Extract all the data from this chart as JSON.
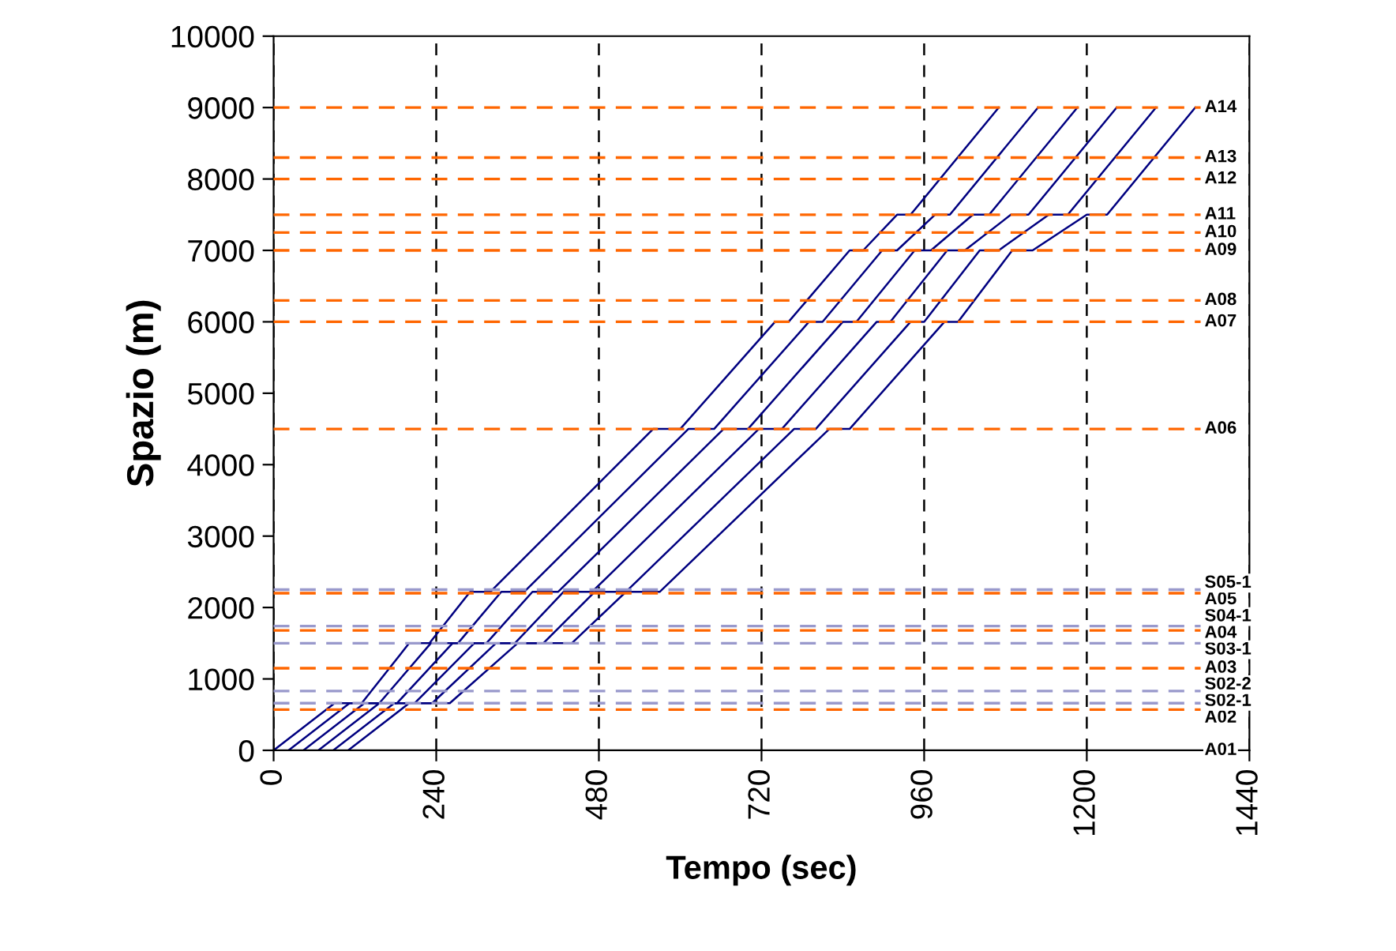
{
  "chart_data": {
    "type": "line",
    "xlabel": "Tempo (sec)",
    "ylabel": "Spazio (m)",
    "xlim": [
      0,
      1440
    ],
    "xticks": [
      0,
      240,
      480,
      720,
      960,
      1200,
      1440
    ],
    "ylim": [
      0,
      10000
    ],
    "yticks": [
      0,
      1000,
      2000,
      3000,
      4000,
      5000,
      6000,
      7000,
      8000,
      9000,
      10000
    ],
    "grid": "x",
    "line_style": "solid",
    "series": [
      {
        "color": "#000080",
        "x": [
          0,
          90,
          130,
          200,
          230,
          290,
          320,
          560,
          600,
          740,
          760,
          850,
          870,
          920,
          940,
          1070
        ],
        "values": [
          0,
          660,
          660,
          1500,
          1500,
          2220,
          2220,
          4500,
          4500,
          6000,
          6000,
          7000,
          7000,
          7500,
          7500,
          9000
        ]
      },
      {
        "color": "#000080",
        "x": [
          22,
          112,
          156,
          232,
          272,
          336,
          370,
          612,
          650,
          790,
          810,
          898,
          920,
          976,
          998,
          1128
        ],
        "values": [
          0,
          660,
          660,
          1500,
          1500,
          2220,
          2220,
          4500,
          4500,
          6000,
          6000,
          7000,
          7000,
          7500,
          7500,
          9000
        ]
      },
      {
        "color": "#000080",
        "x": [
          44,
          134,
          182,
          264,
          314,
          382,
          420,
          664,
          700,
          840,
          860,
          946,
          970,
          1032,
          1056,
          1186
        ],
        "values": [
          0,
          660,
          660,
          1500,
          1500,
          2220,
          2220,
          4500,
          4500,
          6000,
          6000,
          7000,
          7000,
          7500,
          7500,
          9000
        ]
      },
      {
        "color": "#000080",
        "x": [
          66,
          156,
          208,
          296,
          356,
          428,
          470,
          716,
          750,
          890,
          910,
          994,
          1020,
          1088,
          1114,
          1244
        ],
        "values": [
          0,
          660,
          660,
          1500,
          1500,
          2220,
          2220,
          4500,
          4500,
          6000,
          6000,
          7000,
          7000,
          7500,
          7500,
          9000
        ]
      },
      {
        "color": "#000080",
        "x": [
          88,
          178,
          234,
          328,
          398,
          474,
          520,
          768,
          800,
          940,
          960,
          1042,
          1070,
          1144,
          1172,
          1302
        ],
        "values": [
          0,
          660,
          660,
          1500,
          1500,
          2220,
          2220,
          4500,
          4500,
          6000,
          6000,
          7000,
          7000,
          7500,
          7500,
          9000
        ]
      },
      {
        "color": "#000080",
        "x": [
          110,
          200,
          260,
          360,
          440,
          520,
          570,
          820,
          850,
          990,
          1010,
          1090,
          1120,
          1200,
          1230,
          1360
        ],
        "values": [
          0,
          660,
          660,
          1500,
          1500,
          2220,
          2220,
          4500,
          4500,
          6000,
          6000,
          7000,
          7000,
          7500,
          7500,
          9000
        ]
      }
    ],
    "annotations": [
      {
        "text": "A01",
        "y": 0
      }
    ],
    "ref_lines": [
      {
        "axis": "y",
        "value": 570,
        "label": "A02",
        "color": "#ff6600",
        "line_style": "dashed"
      },
      {
        "axis": "y",
        "value": 660,
        "label": "S02-1",
        "color": "#9999cc",
        "line_style": "dashed"
      },
      {
        "axis": "y",
        "value": 830,
        "label": "S02-2",
        "color": "#9999cc",
        "line_style": "dashed"
      },
      {
        "axis": "y",
        "value": 1150,
        "label": "A03",
        "color": "#ff6600",
        "line_style": "dashed"
      },
      {
        "axis": "y",
        "value": 1500,
        "label": "S03-1",
        "color": "#9999cc",
        "line_style": "dashed"
      },
      {
        "axis": "y",
        "value": 1680,
        "label": "A04",
        "color": "#ff6600",
        "line_style": "dashed"
      },
      {
        "axis": "y",
        "value": 1740,
        "label": "S04-1",
        "color": "#9999cc",
        "line_style": "dashed"
      },
      {
        "axis": "y",
        "value": 2200,
        "label": "A05",
        "color": "#ff6600",
        "line_style": "dashed"
      },
      {
        "axis": "y",
        "value": 2250,
        "label": "S05-1",
        "color": "#9999cc",
        "line_style": "dashed"
      },
      {
        "axis": "y",
        "value": 4500,
        "label": "A06",
        "color": "#ff6600",
        "line_style": "dashed"
      },
      {
        "axis": "y",
        "value": 6000,
        "label": "A07",
        "color": "#ff6600",
        "line_style": "dashed"
      },
      {
        "axis": "y",
        "value": 6300,
        "label": "A08",
        "color": "#ff6600",
        "line_style": "dashed"
      },
      {
        "axis": "y",
        "value": 7000,
        "label": "A09",
        "color": "#ff6600",
        "line_style": "dashed"
      },
      {
        "axis": "y",
        "value": 7250,
        "label": "A10",
        "color": "#ff6600",
        "line_style": "dashed"
      },
      {
        "axis": "y",
        "value": 7500,
        "label": "A11",
        "color": "#ff6600",
        "line_style": "dashed"
      },
      {
        "axis": "y",
        "value": 8000,
        "label": "A12",
        "color": "#ff6600",
        "line_style": "dashed"
      },
      {
        "axis": "y",
        "value": 8300,
        "label": "A13",
        "color": "#ff6600",
        "line_style": "dashed"
      },
      {
        "axis": "y",
        "value": 9000,
        "label": "A14",
        "color": "#ff6600",
        "line_style": "dashed"
      }
    ]
  }
}
